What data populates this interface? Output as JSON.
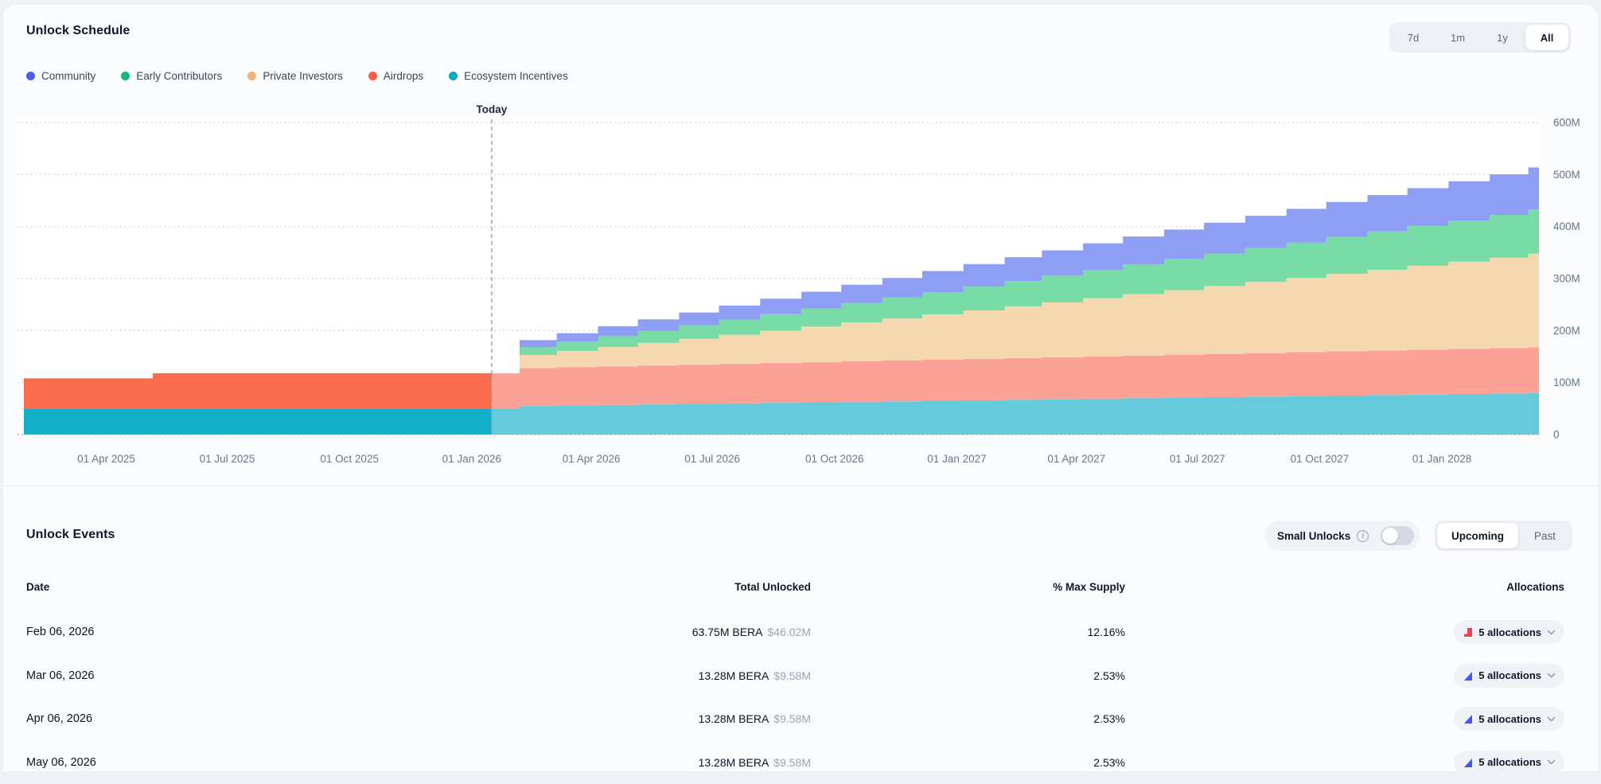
{
  "header": {
    "title": "Unlock Schedule",
    "ranges": [
      "7d",
      "1m",
      "1y",
      "All"
    ],
    "active_range": "All"
  },
  "legend": [
    {
      "label": "Community",
      "color": "#4c5fee"
    },
    {
      "label": "Early Contributors",
      "color": "#10b981"
    },
    {
      "label": "Private Investors",
      "color": "#f0b37d"
    },
    {
      "label": "Airdrops",
      "color": "#f75b4b"
    },
    {
      "label": "Ecosystem Incentives",
      "color": "#0aa8c2"
    }
  ],
  "chart_data": {
    "type": "area",
    "subtype": "stacked-step",
    "title": "Unlock Schedule",
    "unit": "millions of BERA tokens",
    "today": "2026-01-16",
    "today_label": "Today",
    "domain": {
      "start": "2025-01-29",
      "end": "2028-03-14"
    },
    "ylim": [
      0,
      600
    ],
    "y_ticks": [
      {
        "value": 0,
        "label": "0"
      },
      {
        "value": 100,
        "label": "100M"
      },
      {
        "value": 200,
        "label": "200M"
      },
      {
        "value": 300,
        "label": "300M"
      },
      {
        "value": 400,
        "label": "400M"
      },
      {
        "value": 500,
        "label": "500M"
      },
      {
        "value": 600,
        "label": "600M"
      }
    ],
    "x_ticks": [
      {
        "date": "2025-04-01",
        "label": "01 Apr 2025"
      },
      {
        "date": "2025-07-01",
        "label": "01 Jul 2025"
      },
      {
        "date": "2025-10-01",
        "label": "01 Oct 2025"
      },
      {
        "date": "2026-01-01",
        "label": "01 Jan 2026"
      },
      {
        "date": "2026-04-01",
        "label": "01 Apr 2026"
      },
      {
        "date": "2026-07-01",
        "label": "01 Jul 2026"
      },
      {
        "date": "2026-10-01",
        "label": "01 Oct 2026"
      },
      {
        "date": "2027-01-01",
        "label": "01 Jan 2027"
      },
      {
        "date": "2027-04-01",
        "label": "01 Apr 2027"
      },
      {
        "date": "2027-07-01",
        "label": "01 Jul 2027"
      },
      {
        "date": "2027-10-01",
        "label": "01 Oct 2027"
      },
      {
        "date": "2028-01-01",
        "label": "01 Jan 2028"
      }
    ],
    "dates": [
      "2025-02-06",
      "2025-03-06",
      "2025-04-06",
      "2025-05-06",
      "2025-06-06",
      "2025-07-06",
      "2025-08-06",
      "2025-09-06",
      "2025-10-06",
      "2025-11-06",
      "2025-12-06",
      "2026-01-06",
      "2026-02-06",
      "2026-03-06",
      "2026-04-06",
      "2026-05-06",
      "2026-06-06",
      "2026-07-06",
      "2026-08-06",
      "2026-09-06",
      "2026-10-06",
      "2026-11-06",
      "2026-12-06",
      "2027-01-06",
      "2027-02-06",
      "2027-03-06",
      "2027-04-06",
      "2027-05-06",
      "2027-06-06",
      "2027-07-06",
      "2027-08-06",
      "2027-09-06",
      "2027-10-06",
      "2027-11-06",
      "2027-12-06",
      "2028-01-06",
      "2028-02-06",
      "2028-03-06"
    ],
    "series": [
      {
        "name": "Ecosystem Incentives",
        "color": "#13afcb",
        "color_future": "#66cadd",
        "values": [
          50,
          50,
          50,
          50,
          50,
          50,
          50,
          50,
          50,
          50,
          50,
          50,
          55,
          56,
          57,
          58,
          59,
          60,
          61,
          62,
          63,
          64,
          65,
          66,
          67,
          68,
          69,
          70,
          71,
          72,
          73,
          74,
          75,
          76,
          77,
          78,
          79,
          80
        ]
      },
      {
        "name": "Airdrops",
        "color": "#fa6c4d",
        "color_future": "#fba195",
        "values": [
          58,
          58,
          58,
          68,
          68,
          68,
          68,
          68,
          68,
          68,
          68,
          68,
          73,
          73.6,
          74.2,
          74.8,
          75.4,
          76,
          76.6,
          77.2,
          77.8,
          78.4,
          79,
          79.6,
          80.2,
          80.8,
          81.4,
          82,
          82.6,
          83.2,
          83.8,
          84.4,
          85,
          85.6,
          86.2,
          86.8,
          87.4,
          88
        ]
      },
      {
        "name": "Private Investors",
        "color": "#f0b37d",
        "color_future": "#f6d8b0",
        "values": [
          0,
          0,
          0,
          0,
          0,
          0,
          0,
          0,
          0,
          0,
          0,
          0,
          25,
          31.2,
          37.4,
          43.6,
          49.8,
          56,
          62.2,
          68.4,
          74.6,
          80.8,
          87,
          93.2,
          99.4,
          105.6,
          111.8,
          118,
          124.2,
          130.4,
          136.6,
          142.8,
          149,
          155.2,
          161.4,
          167.6,
          173.8,
          180
        ]
      },
      {
        "name": "Early Contributors",
        "color": "#10b981",
        "color_future": "#79dba6",
        "values": [
          0,
          0,
          0,
          0,
          0,
          0,
          0,
          0,
          0,
          0,
          0,
          0,
          15,
          17.8,
          20.6,
          23.4,
          26.2,
          29,
          31.8,
          34.6,
          37.4,
          40.2,
          43,
          45.8,
          48.6,
          51.4,
          54.2,
          57,
          59.8,
          62.6,
          65.4,
          68.2,
          71,
          73.8,
          76.6,
          79.4,
          82.2,
          85
        ]
      },
      {
        "name": "Community",
        "color": "#4c5fee",
        "color_future": "#8f9ef5",
        "values": [
          0,
          0,
          0,
          0,
          0,
          0,
          0,
          0,
          0,
          0,
          0,
          0,
          13.75,
          16.43,
          19.11,
          21.79,
          24.47,
          27.15,
          29.83,
          32.51,
          35.19,
          37.87,
          40.55,
          43.23,
          45.91,
          48.59,
          51.27,
          53.95,
          56.63,
          59.31,
          61.99,
          64.67,
          67.35,
          70.03,
          72.71,
          75.39,
          78.07,
          80.75
        ]
      }
    ],
    "legend_position": "top-left",
    "grid": "dotted-horizontal"
  },
  "events": {
    "title": "Unlock Events",
    "small_unlocks_label": "Small Unlocks",
    "small_unlocks_on": false,
    "tabs": [
      "Upcoming",
      "Past"
    ],
    "active_tab": "Upcoming",
    "columns": [
      "Date",
      "Total Unlocked",
      "% Max Supply",
      "Allocations"
    ],
    "rows": [
      {
        "date": "Feb 06, 2026",
        "amount": "63.75M BERA",
        "usd": "$46.02M",
        "pct": "12.16%",
        "allocations": "5 allocations",
        "icon": "cliff"
      },
      {
        "date": "Mar 06, 2026",
        "amount": "13.28M BERA",
        "usd": "$9.58M",
        "pct": "2.53%",
        "allocations": "5 allocations",
        "icon": "linear"
      },
      {
        "date": "Apr 06, 2026",
        "amount": "13.28M BERA",
        "usd": "$9.58M",
        "pct": "2.53%",
        "allocations": "5 allocations",
        "icon": "linear"
      },
      {
        "date": "May 06, 2026",
        "amount": "13.28M BERA",
        "usd": "$9.58M",
        "pct": "2.53%",
        "allocations": "5 allocations",
        "icon": "linear"
      }
    ],
    "icon_colors": {
      "cliff": "#f2404f",
      "linear": "#4156f3"
    }
  }
}
